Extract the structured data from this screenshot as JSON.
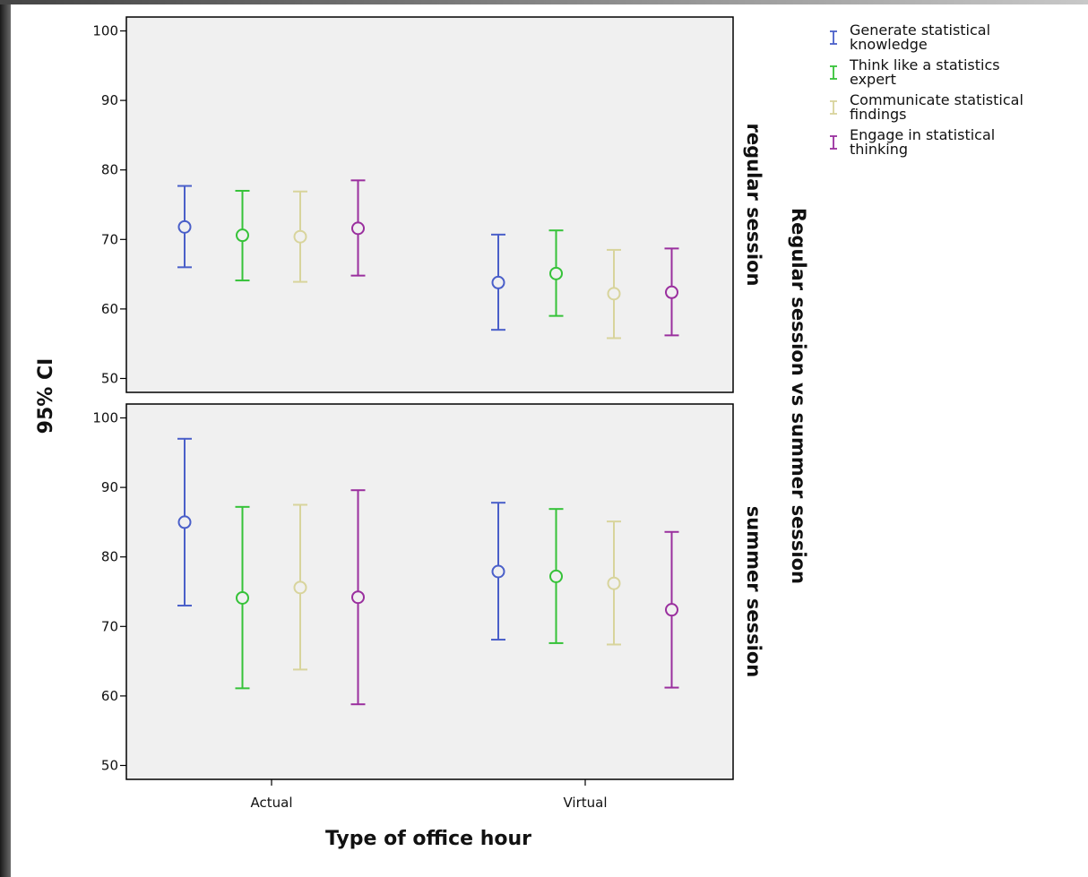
{
  "chart_data": {
    "type": "errorbar",
    "ylabel": "95% CI",
    "xlabel": "Type of office hour",
    "row_title": "Regular session vs summer session",
    "categories": [
      "Actual",
      "Virtual"
    ],
    "yticks": [
      50,
      60,
      70,
      80,
      90,
      100
    ],
    "ylim": [
      48,
      102
    ],
    "legend_position": "top-right",
    "series": [
      {
        "name": "Generate statistical knowledge",
        "name_lines": [
          "Generate statistical",
          "knowledge"
        ],
        "color": "#4a5fc9"
      },
      {
        "name": "Think like a statistics expert",
        "name_lines": [
          "Think like a statistics",
          "expert"
        ],
        "color": "#36c239"
      },
      {
        "name": "Communicate statistical findings",
        "name_lines": [
          "Communicate statistical",
          "findings"
        ],
        "color": "#d8d49c"
      },
      {
        "name": "Engage in statistical thinking",
        "name_lines": [
          "Engage in statistical",
          "thinking"
        ],
        "color": "#9a2f9e"
      }
    ],
    "panels": [
      {
        "label": "regular session",
        "groups": [
          {
            "category": "Actual",
            "points": [
              {
                "mean": 71.8,
                "low": 66.0,
                "high": 77.7
              },
              {
                "mean": 70.6,
                "low": 64.1,
                "high": 77.0
              },
              {
                "mean": 70.4,
                "low": 63.9,
                "high": 76.9
              },
              {
                "mean": 71.6,
                "low": 64.8,
                "high": 78.5
              }
            ]
          },
          {
            "category": "Virtual",
            "points": [
              {
                "mean": 63.8,
                "low": 57.0,
                "high": 70.7
              },
              {
                "mean": 65.1,
                "low": 59.0,
                "high": 71.3
              },
              {
                "mean": 62.2,
                "low": 55.8,
                "high": 68.5
              },
              {
                "mean": 62.4,
                "low": 56.2,
                "high": 68.7
              }
            ]
          }
        ]
      },
      {
        "label": "summer session",
        "groups": [
          {
            "category": "Actual",
            "points": [
              {
                "mean": 85.0,
                "low": 73.0,
                "high": 97.0
              },
              {
                "mean": 74.1,
                "low": 61.1,
                "high": 87.2
              },
              {
                "mean": 75.6,
                "low": 63.8,
                "high": 87.5
              },
              {
                "mean": 74.2,
                "low": 58.8,
                "high": 89.6
              }
            ]
          },
          {
            "category": "Virtual",
            "points": [
              {
                "mean": 77.9,
                "low": 68.1,
                "high": 87.8
              },
              {
                "mean": 77.2,
                "low": 67.6,
                "high": 86.9
              },
              {
                "mean": 76.2,
                "low": 67.4,
                "high": 85.1
              },
              {
                "mean": 72.4,
                "low": 61.2,
                "high": 83.6
              }
            ]
          }
        ]
      }
    ]
  }
}
